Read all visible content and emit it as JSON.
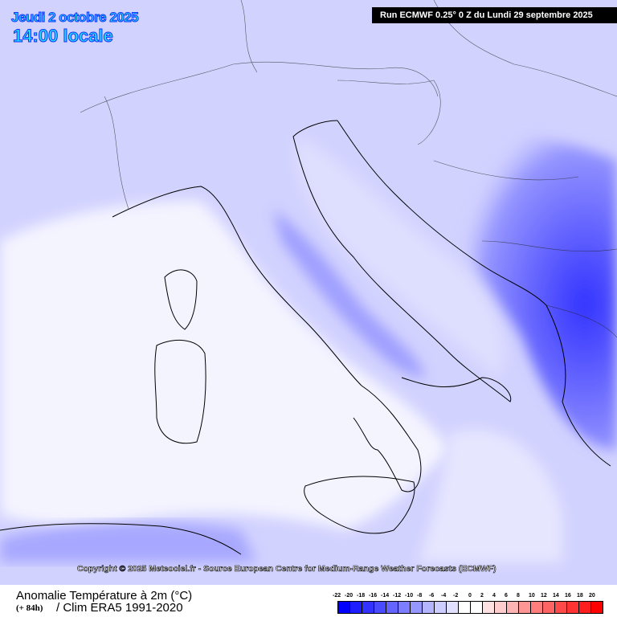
{
  "header": {
    "date": "Jeudi 2 octobre 2025",
    "time": "14:00 locale",
    "run": "Run ECMWF 0.25° 0 Z du Lundi 29 septembre 2025"
  },
  "copyright": "Copyright © 2025 Meteociel.fr - Source European Centre for Medium-Range Weather Forecasts (ECMWF)",
  "footer": {
    "parameter": "Anomalie Température à 2m (°C)",
    "lead": "(+ 84h)",
    "climatology": "/ Clim ERA5 1991-2020"
  },
  "legend": {
    "labels": [
      "-22",
      "-20",
      "-18",
      "-16",
      "-14",
      "-12",
      "-10",
      "-8",
      "-6",
      "-4",
      "-2",
      "0",
      "2",
      "4",
      "6",
      "8",
      "10",
      "12",
      "14",
      "16",
      "18",
      "20"
    ],
    "colors": [
      "#0000ff",
      "#1e1eff",
      "#3333ff",
      "#4a4aff",
      "#6464ff",
      "#7d7dff",
      "#9696ff",
      "#b4b4ff",
      "#cdcdff",
      "#e1e1ff",
      "#ffffff",
      "#ffffff",
      "#ffe1e1",
      "#ffcdcd",
      "#ffb4b4",
      "#ff9696",
      "#ff7d7d",
      "#ff6464",
      "#ff4a4a",
      "#ff3333",
      "#ff1e1e",
      "#ff0000"
    ]
  }
}
